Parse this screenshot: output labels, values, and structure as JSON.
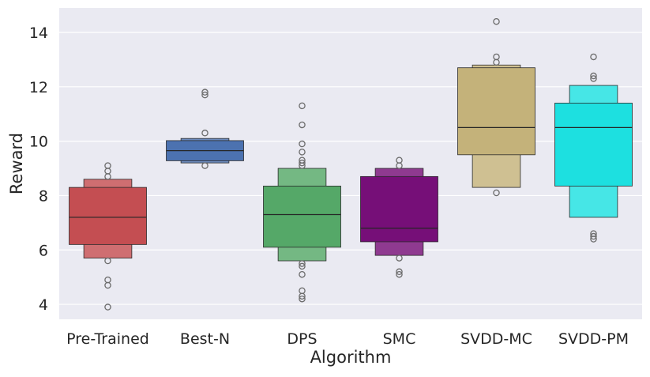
{
  "chart_data": {
    "type": "boxenplot",
    "title": "",
    "xlabel": "Algorithm",
    "ylabel": "Reward",
    "ylim": [
      3.45,
      14.9
    ],
    "yticks": [
      4,
      6,
      8,
      10,
      12,
      14
    ],
    "grid": true,
    "categories": [
      "Pre-Trained",
      "Best-N",
      "DPS",
      "SMC",
      "SVDD-MC",
      "SVDD-PM"
    ],
    "series": [
      {
        "name": "Pre-Trained",
        "color": "#c44e52",
        "median": 7.2,
        "levels": [
          [
            6.2,
            8.3
          ],
          [
            5.7,
            8.6
          ]
        ],
        "outliers": [
          9.1,
          8.9,
          8.7,
          5.6,
          4.9,
          4.7,
          3.9
        ]
      },
      {
        "name": "Best-N",
        "color": "#4c72b0",
        "median": 9.65,
        "levels": [
          [
            9.28,
            10.02
          ],
          [
            9.2,
            10.1
          ]
        ],
        "outliers": [
          11.8,
          11.7,
          10.3,
          9.1
        ]
      },
      {
        "name": "DPS",
        "color": "#55a868",
        "median": 7.3,
        "levels": [
          [
            6.1,
            8.35
          ],
          [
            5.6,
            9.0
          ]
        ],
        "outliers": [
          11.3,
          10.6,
          9.9,
          9.6,
          9.3,
          9.2,
          9.1,
          5.5,
          5.4,
          5.1,
          4.5,
          4.3,
          4.2
        ]
      },
      {
        "name": "SMC",
        "color": "#760f78",
        "median": 6.8,
        "levels": [
          [
            6.3,
            8.7
          ],
          [
            5.8,
            9.0
          ]
        ],
        "outliers": [
          9.3,
          9.1,
          5.7,
          5.2,
          5.1
        ]
      },
      {
        "name": "SVDD-MC",
        "color": "#c4b27a",
        "median": 10.5,
        "levels": [
          [
            9.5,
            12.7
          ],
          [
            8.3,
            12.8
          ]
        ],
        "outliers": [
          14.4,
          13.1,
          12.9,
          8.1
        ]
      },
      {
        "name": "SVDD-PM",
        "color": "#1de0e0",
        "median": 10.5,
        "levels": [
          [
            8.35,
            11.4
          ],
          [
            7.2,
            12.05
          ]
        ],
        "outliers": [
          13.1,
          12.4,
          12.3,
          6.6,
          6.5,
          6.4
        ]
      }
    ]
  }
}
